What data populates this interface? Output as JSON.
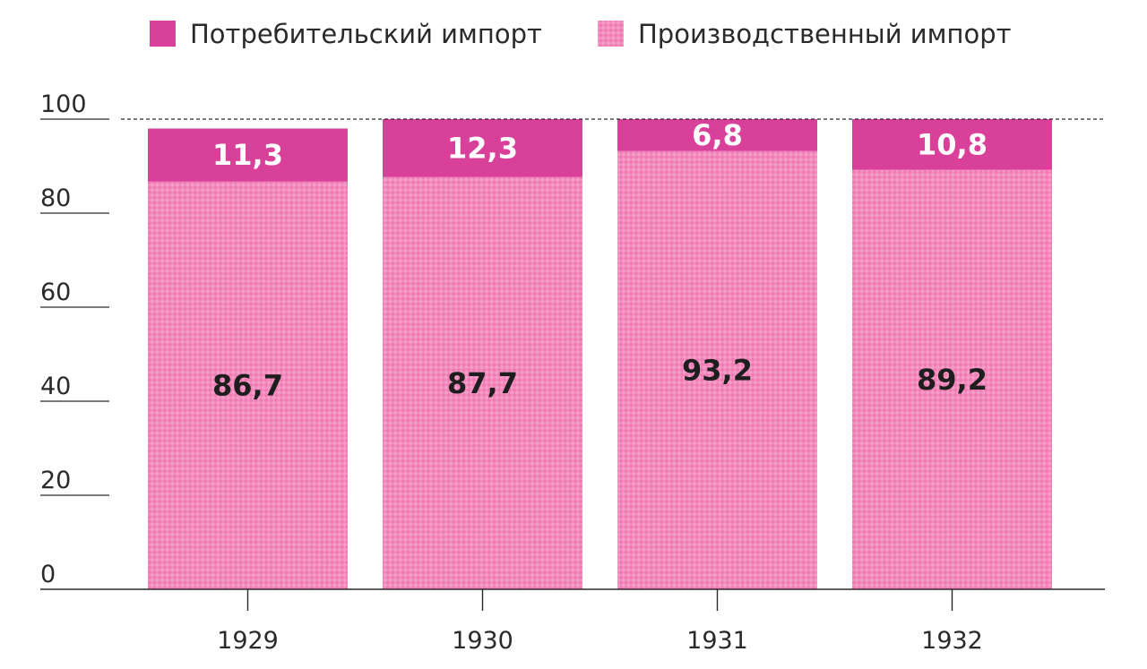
{
  "chart_data": {
    "type": "bar",
    "stacked": true,
    "categories": [
      "1929",
      "1930",
      "1931",
      "1932"
    ],
    "series": [
      {
        "name": "Потребительский импорт",
        "values": [
          11.3,
          12.3,
          6.8,
          10.8
        ],
        "labels": [
          "11,3",
          "12,3",
          "6,8",
          "10,8"
        ],
        "color": "#d9409a",
        "fill": "solid"
      },
      {
        "name": "Производственный импорт",
        "values": [
          86.7,
          87.7,
          93.2,
          89.2
        ],
        "labels": [
          "86,7",
          "87,7",
          "93,2",
          "89,2"
        ],
        "color": "#f07cb4",
        "fill": "checkered"
      }
    ],
    "yticks": [
      "0",
      "20",
      "40",
      "60",
      "80",
      "100"
    ],
    "ylim": [
      0,
      100
    ],
    "grid": false,
    "legend": "top",
    "reference_line": 100
  },
  "colors": {
    "axis": "#2a2a2a",
    "text": "#2a2a2a",
    "label_light": "#ffffff",
    "label_dark": "#1e1e1e"
  }
}
